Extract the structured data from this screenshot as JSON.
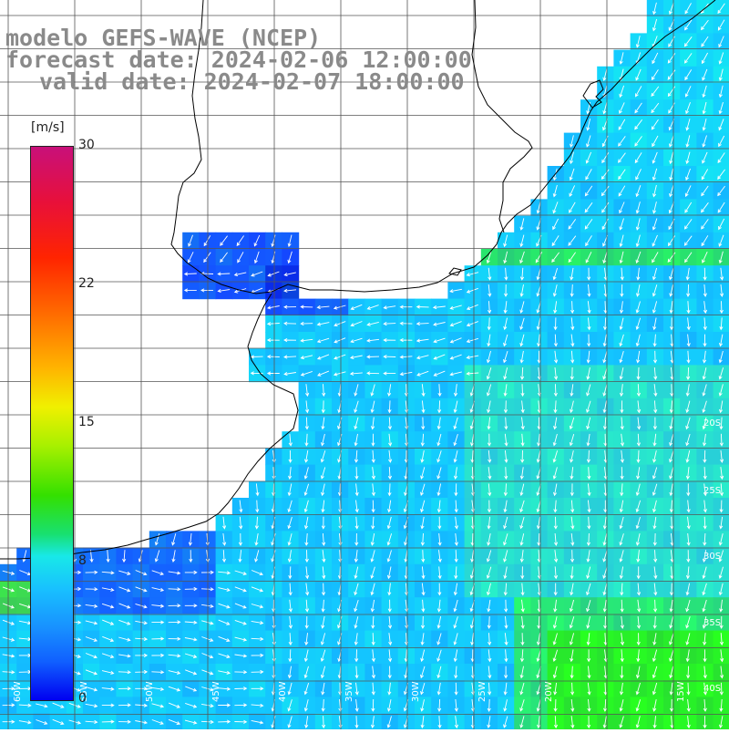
{
  "title": {
    "line1": "modelo GEFS-WAVE (NCEP)",
    "line2": "forecast date: 2024-02-06 12:00:00",
    "line3": "valid date: 2024-02-07 18:00:00"
  },
  "colorbar": {
    "unit": "[m/s]",
    "ticks": [
      "30",
      "22",
      "15",
      "8",
      "0"
    ],
    "range": [
      0,
      30
    ]
  },
  "lat_labels": [
    "20S",
    "25S",
    "30S",
    "35S",
    "40S"
  ],
  "lon_labels": [
    "60W",
    "55W",
    "50W",
    "45W",
    "40W",
    "35W",
    "30W",
    "25W",
    "20W",
    "15W"
  ],
  "colors": {
    "land": "#ffffff",
    "coast": "#000000",
    "grid": "#555555",
    "vector": "#ffffff",
    "title_text": "#8a8a8a"
  }
}
